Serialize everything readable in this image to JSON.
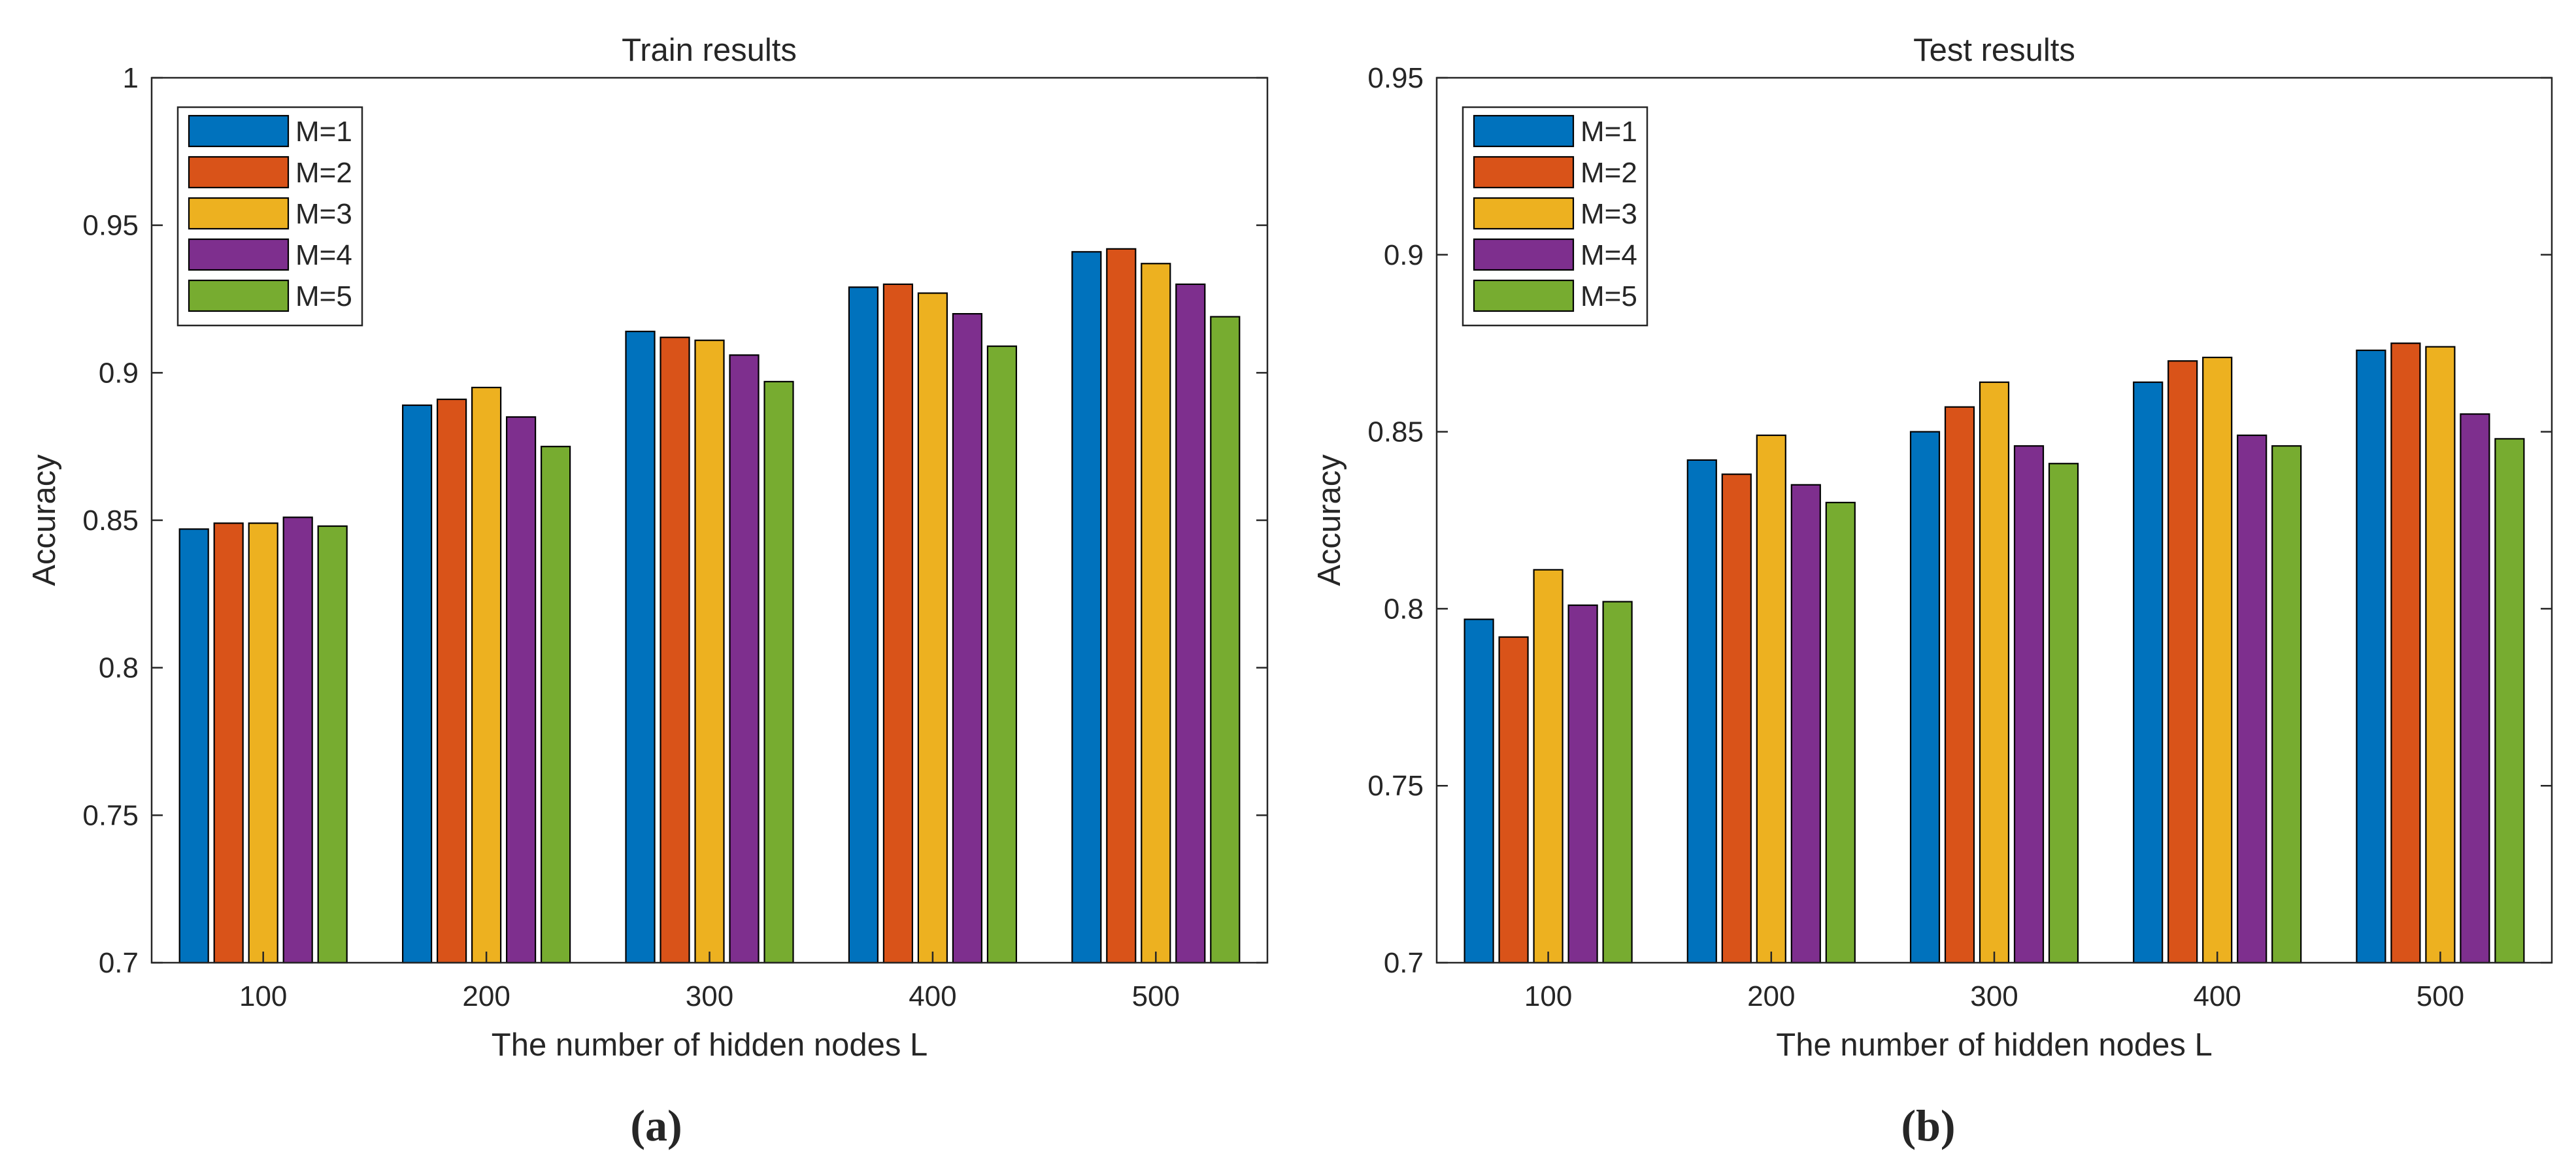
{
  "chart_data": [
    {
      "type": "bar",
      "title": "Train results",
      "xlabel": "The number of hidden nodes L",
      "ylabel": "Accuracy",
      "categories": [
        "100",
        "200",
        "300",
        "400",
        "500"
      ],
      "ylim": [
        0.7,
        1
      ],
      "yticks": [
        "0.7",
        "0.75",
        "0.8",
        "0.85",
        "0.9",
        "0.95",
        "1"
      ],
      "legend_position": "top-left",
      "series": [
        {
          "name": "M=1",
          "color": "#0072BD",
          "values": [
            0.847,
            0.889,
            0.914,
            0.929,
            0.941
          ]
        },
        {
          "name": "M=2",
          "color": "#D95319",
          "values": [
            0.849,
            0.891,
            0.912,
            0.93,
            0.942
          ]
        },
        {
          "name": "M=3",
          "color": "#EDB120",
          "values": [
            0.849,
            0.895,
            0.911,
            0.927,
            0.937
          ]
        },
        {
          "name": "M=4",
          "color": "#7E2F8E",
          "values": [
            0.851,
            0.885,
            0.906,
            0.92,
            0.93
          ]
        },
        {
          "name": "M=5",
          "color": "#77AC30",
          "values": [
            0.848,
            0.875,
            0.897,
            0.909,
            0.919
          ]
        }
      ],
      "caption": "(a)"
    },
    {
      "type": "bar",
      "title": "Test results",
      "xlabel": "The number of hidden nodes L",
      "ylabel": "Accuracy",
      "categories": [
        "100",
        "200",
        "300",
        "400",
        "500"
      ],
      "ylim": [
        0.7,
        0.95
      ],
      "yticks": [
        "0.7",
        "0.75",
        "0.8",
        "0.85",
        "0.9",
        "0.95"
      ],
      "legend_position": "top-left",
      "series": [
        {
          "name": "M=1",
          "color": "#0072BD",
          "values": [
            0.797,
            0.842,
            0.85,
            0.864,
            0.873
          ]
        },
        {
          "name": "M=2",
          "color": "#D95319",
          "values": [
            0.792,
            0.838,
            0.857,
            0.87,
            0.875
          ]
        },
        {
          "name": "M=3",
          "color": "#EDB120",
          "values": [
            0.811,
            0.849,
            0.864,
            0.871,
            0.874
          ]
        },
        {
          "name": "M=4",
          "color": "#7E2F8E",
          "values": [
            0.801,
            0.835,
            0.846,
            0.849,
            0.855
          ]
        },
        {
          "name": "M=5",
          "color": "#77AC30",
          "values": [
            0.802,
            0.83,
            0.841,
            0.846,
            0.848
          ]
        }
      ],
      "caption": "(b)"
    }
  ]
}
